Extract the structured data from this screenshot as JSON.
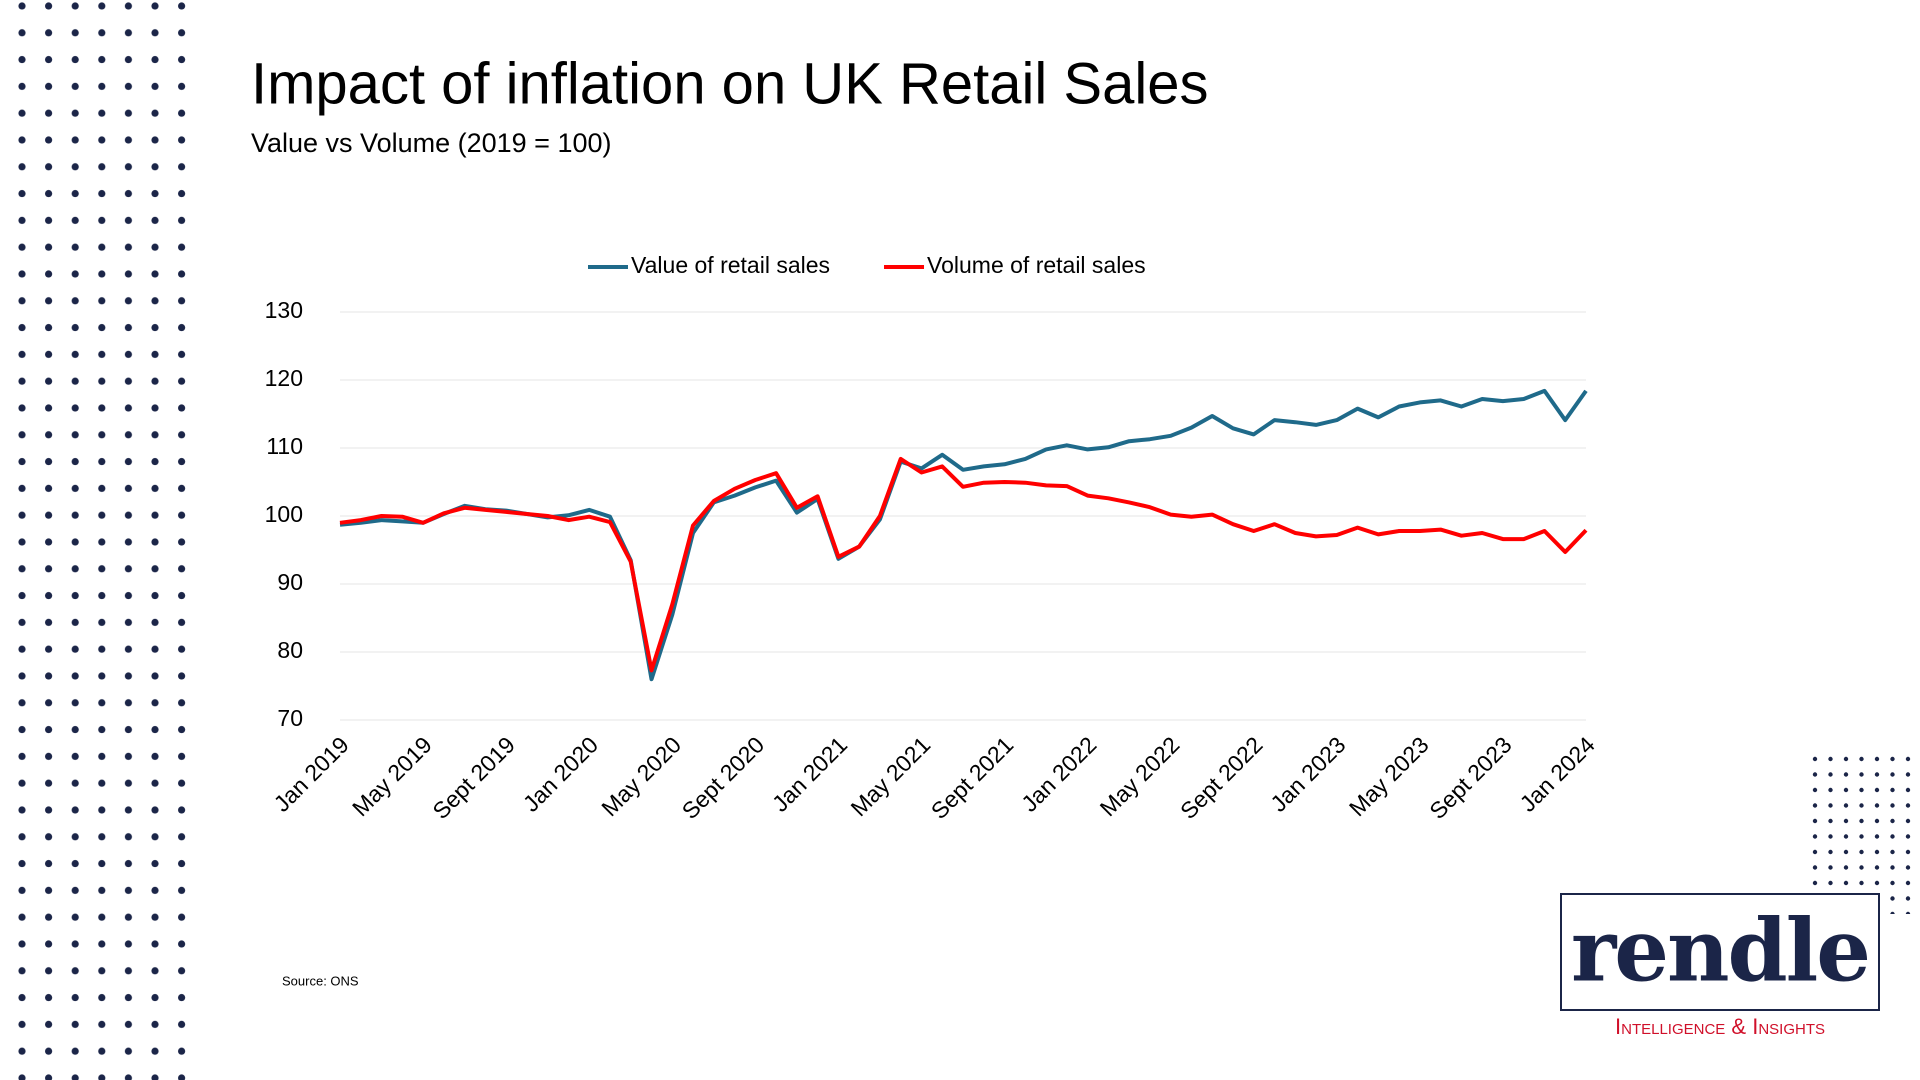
{
  "chart_data": {
    "type": "line",
    "title": "Impact of inflation on UK Retail Sales",
    "subtitle": "Value vs Volume (2019 = 100)",
    "source": "Source: ONS",
    "categories": [
      "Jan 2019",
      null,
      null,
      null,
      "May 2019",
      null,
      null,
      null,
      "Sept 2019",
      null,
      null,
      null,
      "Jan 2020",
      null,
      null,
      null,
      "May 2020",
      null,
      null,
      null,
      "Sept 2020",
      null,
      null,
      null,
      "Jan 2021",
      null,
      null,
      null,
      "May 2021",
      null,
      null,
      null,
      "Sept 2021",
      null,
      null,
      null,
      "Jan 2022",
      null,
      null,
      null,
      "May 2022",
      null,
      null,
      null,
      "Sept 2022",
      null,
      null,
      null,
      "Jan 2023",
      null,
      null,
      null,
      "May 2023",
      null,
      null,
      null,
      "Sept 2023",
      null,
      null,
      null,
      "Jan 2024"
    ],
    "series": [
      {
        "name": "Value of retail sales",
        "color": "#1f6a8a",
        "values": [
          98.7,
          99,
          99.4,
          99.2,
          99,
          100.3,
          101.5,
          101,
          100.8,
          100.3,
          99.8,
          100.1,
          100.9,
          99.9,
          93.5,
          76,
          85.5,
          97.5,
          102,
          103,
          104.2,
          105.2,
          100.5,
          102.5,
          93.7,
          95.5,
          99.5,
          108,
          107,
          109,
          106.8,
          107.3,
          107.6,
          108.4,
          109.8,
          110.4,
          109.8,
          110.1,
          111,
          111.3,
          111.8,
          113,
          114.7,
          112.9,
          112,
          114.1,
          113.8,
          113.4,
          114.1,
          115.8,
          114.5,
          116.1,
          116.7,
          117,
          116.1,
          117.2,
          116.9,
          117.2,
          118.4,
          114.1,
          118.4
        ]
      },
      {
        "name": "Volume of retail sales",
        "color": "#ff0000",
        "values": [
          99,
          99.4,
          100,
          99.9,
          99,
          100.4,
          101.2,
          100.9,
          100.6,
          100.3,
          100,
          99.4,
          99.9,
          99.1,
          93.3,
          77.3,
          87,
          98.6,
          102.2,
          104,
          105.3,
          106.3,
          101.2,
          102.9,
          94,
          95.5,
          100,
          108.4,
          106.4,
          107.3,
          104.3,
          104.9,
          105,
          104.9,
          104.5,
          104.4,
          103,
          102.6,
          102,
          101.3,
          100.2,
          99.9,
          100.2,
          98.8,
          97.8,
          98.8,
          97.5,
          97,
          97.2,
          98.3,
          97.3,
          97.8,
          97.8,
          98,
          97.1,
          97.5,
          96.6,
          96.6,
          97.8,
          94.7,
          97.9
        ]
      }
    ],
    "ylim": [
      70,
      130
    ],
    "yticks": [
      70,
      80,
      90,
      100,
      110,
      120,
      130
    ],
    "grid": true,
    "legend": "top"
  },
  "logo": {
    "name": "rendle",
    "tagline": "Intelligence & Insights"
  }
}
